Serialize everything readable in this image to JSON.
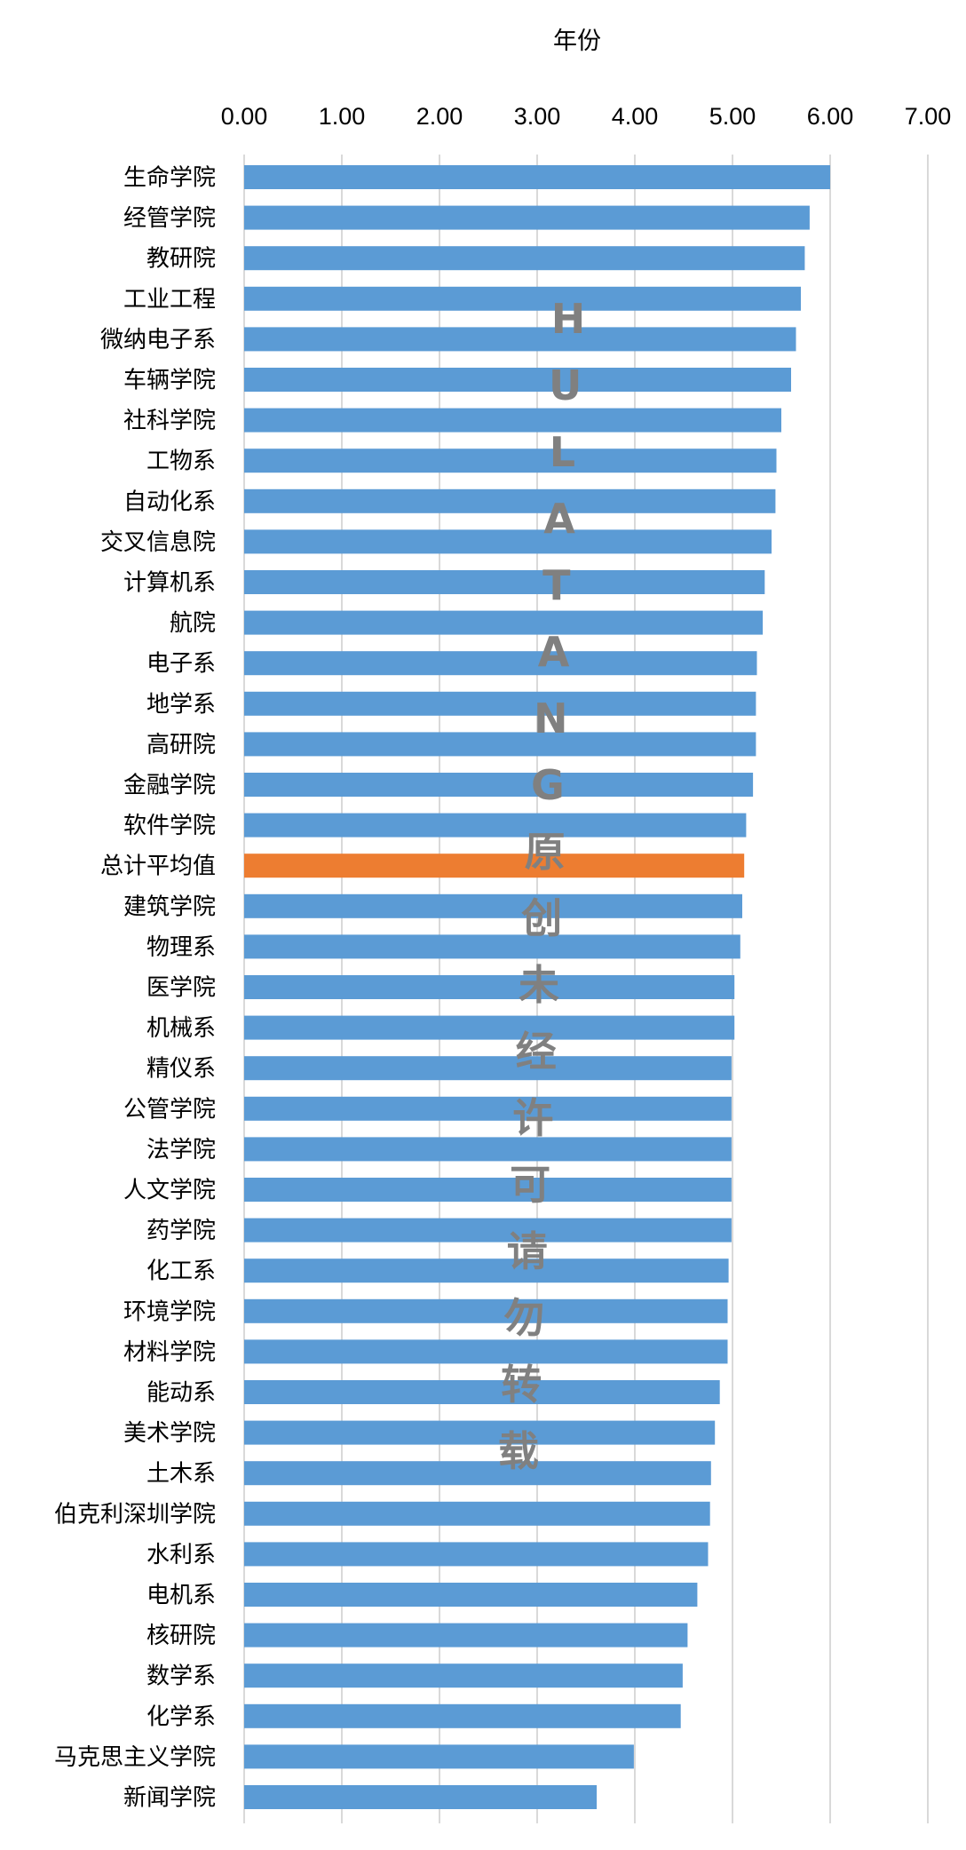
{
  "chart_data": {
    "type": "bar",
    "orientation": "horizontal",
    "title": "年份",
    "xlabel": "",
    "ylabel": "",
    "xlim": [
      0,
      7
    ],
    "xticks": [
      "0.00",
      "1.00",
      "2.00",
      "3.00",
      "4.00",
      "5.00",
      "6.00",
      "7.00"
    ],
    "grid": true,
    "categories": [
      "生命学院",
      "经管学院",
      "教研院",
      "工业工程",
      "微纳电子系",
      "车辆学院",
      "社科学院",
      "工物系",
      "自动化系",
      "交叉信息院",
      "计算机系",
      "航院",
      "电子系",
      "地学系",
      "高研院",
      "金融学院",
      "软件学院",
      "总计平均值",
      "建筑学院",
      "物理系",
      "医学院",
      "机械系",
      "精仪系",
      "公管学院",
      "法学院",
      "人文学院",
      "药学院",
      "化工系",
      "环境学院",
      "材料学院",
      "能动系",
      "美术学院",
      "土木系",
      "伯克利深圳学院",
      "水利系",
      "电机系",
      "核研院",
      "数学系",
      "化学系",
      "马克思主义学院",
      "新闻学院"
    ],
    "values": [
      6.0,
      5.79,
      5.74,
      5.7,
      5.65,
      5.6,
      5.5,
      5.45,
      5.44,
      5.4,
      5.33,
      5.31,
      5.25,
      5.24,
      5.24,
      5.21,
      5.14,
      5.12,
      5.1,
      5.08,
      5.02,
      5.02,
      4.99,
      4.99,
      4.99,
      4.99,
      4.99,
      4.96,
      4.95,
      4.95,
      4.87,
      4.82,
      4.78,
      4.77,
      4.75,
      4.64,
      4.54,
      4.49,
      4.47,
      3.99,
      3.61
    ],
    "highlight_category": "总计平均值",
    "colors": {
      "bar": "#5b9bd5",
      "highlight": "#ed7d31",
      "grid": "#d9d9d9"
    }
  },
  "watermark": "HULATANG原创未经许可请勿转载"
}
